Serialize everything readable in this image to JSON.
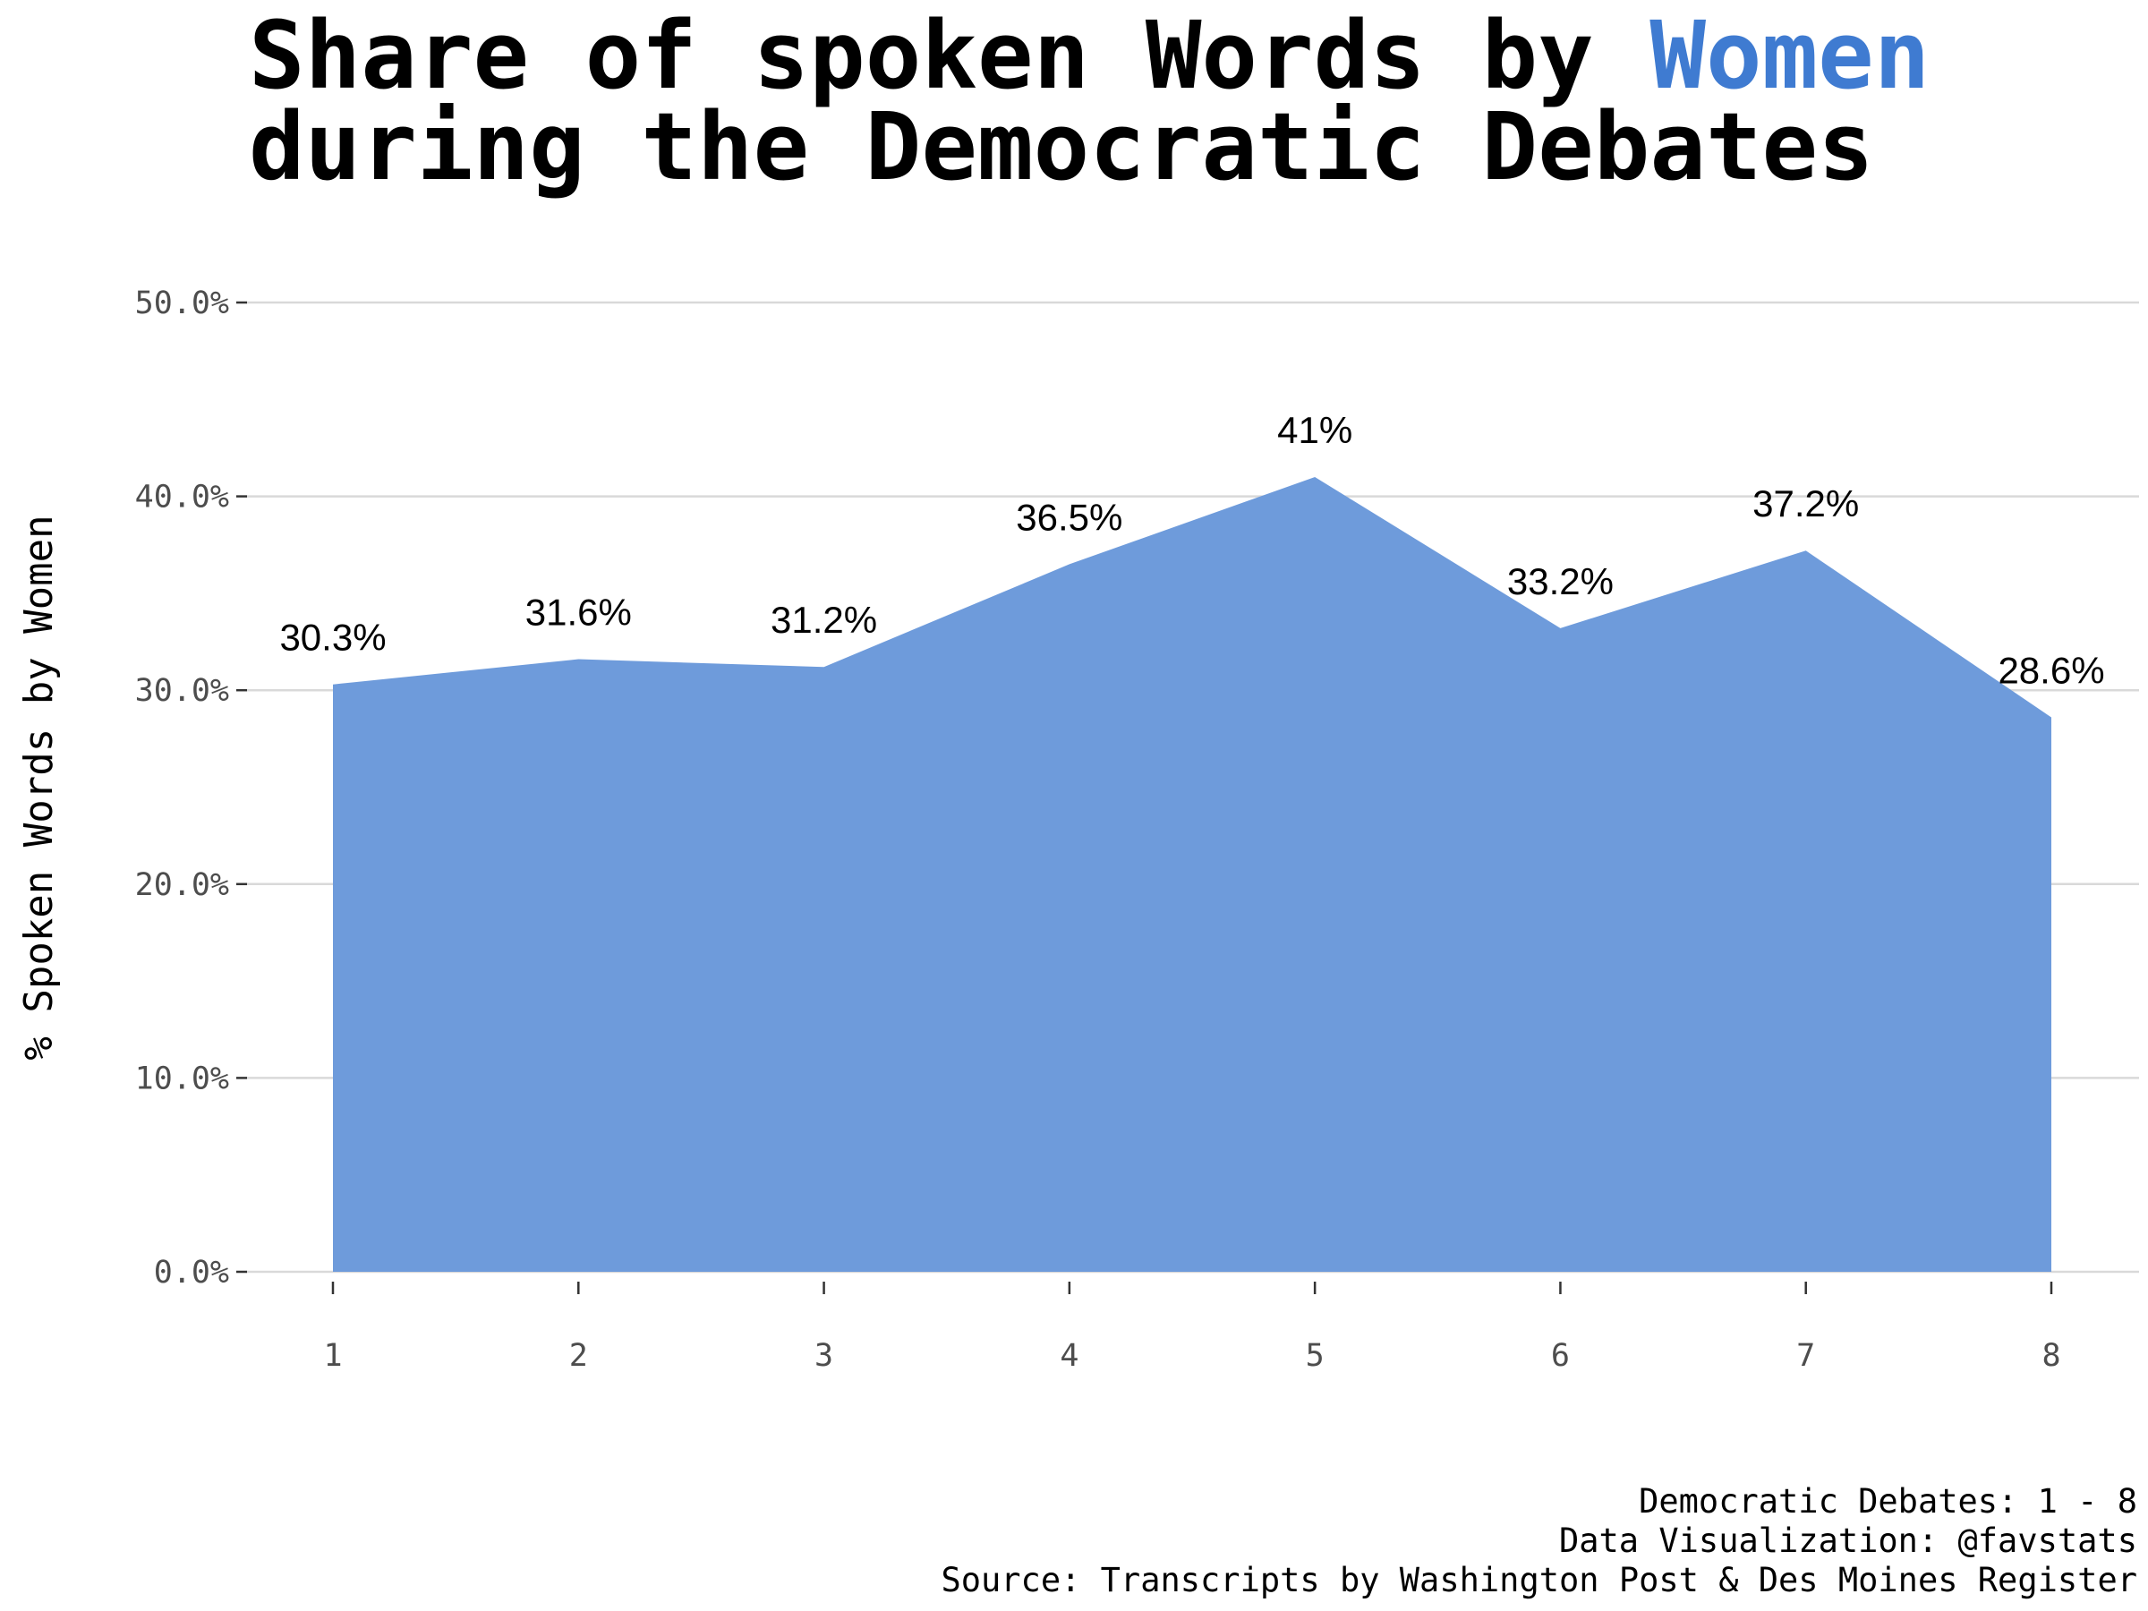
{
  "title": {
    "line1_prefix": "Share of spoken Words by ",
    "line1_highlight": "Women",
    "line2": "during the Democratic Debates"
  },
  "caption": {
    "line1": "Democratic Debates: 1 - 8",
    "line2": "Data Visualization: @favstats",
    "line3": "Source: Transcripts by Washington Post & Des Moines Register"
  },
  "colors": {
    "highlight": "#3f7bd1",
    "area_fill": "#6e9bdb",
    "grid": "#d9d9d9",
    "tick_text": "#4d4d4d"
  },
  "chart_data": {
    "type": "area",
    "x": [
      1,
      2,
      3,
      4,
      5,
      6,
      7,
      8
    ],
    "values": [
      30.3,
      31.6,
      31.2,
      36.5,
      41.0,
      33.2,
      37.2,
      28.6
    ],
    "data_labels": [
      "30.3%",
      "31.6%",
      "31.2%",
      "36.5%",
      "41%",
      "33.2%",
      "37.2%",
      "28.6%"
    ],
    "xtick_labels": [
      "1",
      "2",
      "3",
      "4",
      "5",
      "6",
      "7",
      "8"
    ],
    "yticks": [
      0,
      10,
      20,
      30,
      40,
      50
    ],
    "ytick_labels": [
      "0.0%",
      "10.0%",
      "20.0%",
      "30.0%",
      "40.0%",
      "50.0%"
    ],
    "ylabel": "% Spoken Words by Women",
    "xlabel": "",
    "ylim": [
      0,
      50
    ],
    "xlim": [
      1,
      8
    ],
    "grid": true,
    "legend": "none"
  }
}
